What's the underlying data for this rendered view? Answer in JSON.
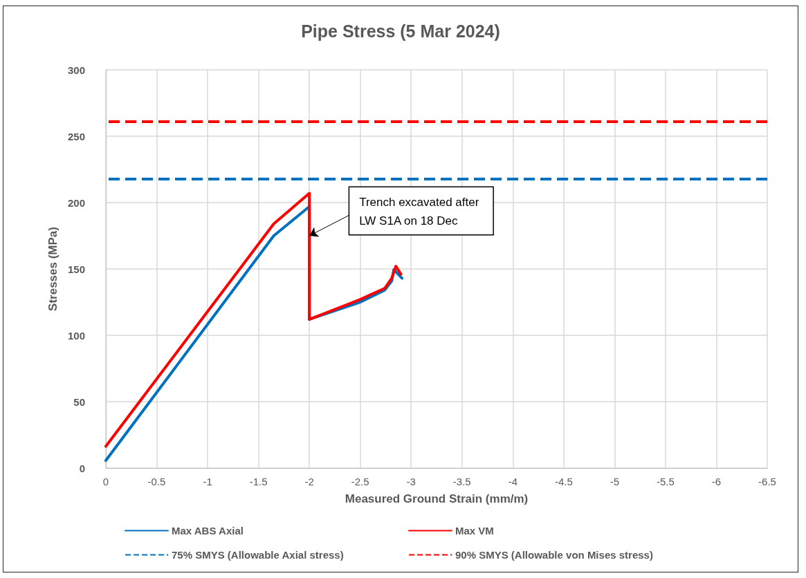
{
  "chart_data": {
    "type": "line",
    "title": "Pipe Stress (5 Mar 2024)",
    "xlabel": "Measured Ground Strain (mm/m)",
    "ylabel": "Stresses (MPa)",
    "xlim": [
      0,
      -6.5
    ],
    "xticks": [
      0,
      -0.5,
      -1,
      -1.5,
      -2,
      -2.5,
      -3,
      -3.5,
      -4,
      -4.5,
      -5,
      -5.5,
      -6,
      -6.5
    ],
    "ylim": [
      0,
      300
    ],
    "yticks": [
      0,
      50,
      100,
      150,
      200,
      250,
      300
    ],
    "series": [
      {
        "name": "Max ABS Axial",
        "color": "#0070c0",
        "x": [
          0,
          -1.65,
          -2,
          -2,
          -2.5,
          -2.74,
          -2.81,
          -2.83,
          -2.91
        ],
        "values": [
          5.7,
          175,
          197,
          112,
          125,
          134,
          141,
          149.5,
          143
        ]
      },
      {
        "name": "Max VM",
        "color": "#ff0000",
        "x": [
          0,
          -1.65,
          -2,
          -2,
          -2.5,
          -2.74,
          -2.81,
          -2.85,
          -2.9
        ],
        "values": [
          16.4,
          184,
          207,
          112,
          127,
          135.4,
          143,
          152,
          146
        ]
      }
    ],
    "ref_lines": [
      {
        "axis": "y",
        "value": 218,
        "label": "75% SMYS (Allowable Axial stress)",
        "color": "#0070c0",
        "line_style": "dashed"
      },
      {
        "axis": "y",
        "value": 261,
        "label": "90% SMYS (Allowable von Mises stress)",
        "color": "#ff0000",
        "line_style": "dashed"
      }
    ],
    "annotations": [
      {
        "text": "Trench excavated after\nLW S1A on 18 Dec",
        "x": -2,
        "y": 175
      }
    ],
    "grid": true,
    "legend": "bottom",
    "marker": "none",
    "line_style": "solid"
  }
}
